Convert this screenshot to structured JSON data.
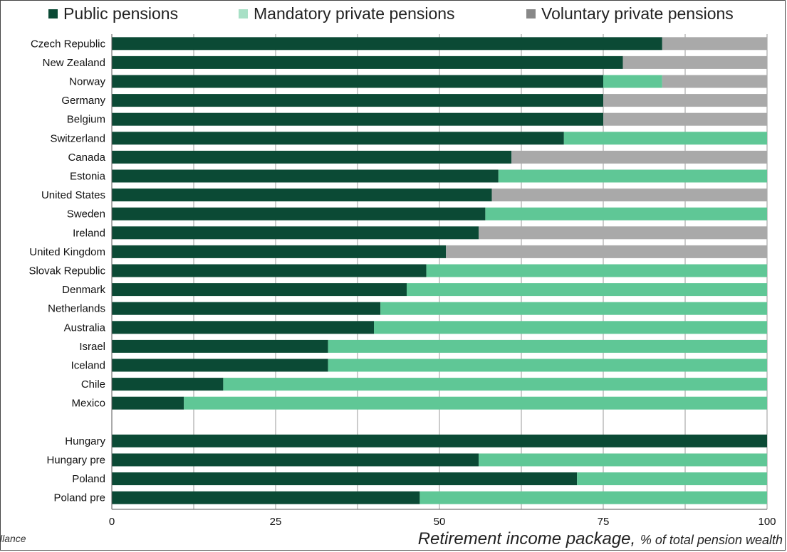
{
  "colors": {
    "public": "#0b4a35",
    "mandatory": "#5fc796",
    "voluntary": "#a9a9a9",
    "legend_mandatory": "#a8e0c6",
    "legend_voluntary": "#888888",
    "grid": "#9a9a9a"
  },
  "legend": {
    "public": "Public pensions",
    "mandatory": "Mandatory private pensions",
    "voluntary": "Voluntary private pensions"
  },
  "source_fragment": "llance",
  "chart_data": {
    "type": "bar",
    "orientation": "horizontal",
    "stacked": true,
    "categories": [
      "Czech Republic",
      "New Zealand",
      "Norway",
      "Germany",
      "Belgium",
      "Switzerland",
      "Canada",
      "Estonia",
      "United States",
      "Sweden",
      "Ireland",
      "United Kingdom",
      "Slovak Republic",
      "Denmark",
      "Netherlands",
      "Australia",
      "Israel",
      "Iceland",
      "Chile",
      "Mexico",
      "",
      "Hungary",
      "Hungary pre",
      "Poland",
      "Poland pre"
    ],
    "series": [
      {
        "name": "Public pensions",
        "values": [
          84,
          78,
          75,
          75,
          75,
          69,
          61,
          59,
          58,
          57,
          56,
          51,
          48,
          45,
          41,
          40,
          33,
          33,
          17,
          11,
          null,
          100,
          56,
          71,
          47
        ]
      },
      {
        "name": "Mandatory private pensions",
        "values": [
          0,
          0,
          9,
          0,
          0,
          31,
          0,
          41,
          0,
          43,
          0,
          0,
          52,
          55,
          59,
          60,
          67,
          67,
          83,
          89,
          null,
          0,
          44,
          29,
          53
        ]
      },
      {
        "name": "Voluntary private pensions",
        "values": [
          16,
          22,
          16,
          25,
          25,
          0,
          39,
          0,
          42,
          0,
          44,
          49,
          0,
          0,
          0,
          0,
          0,
          0,
          0,
          0,
          null,
          0,
          0,
          0,
          0
        ]
      }
    ],
    "xlim": [
      0,
      100
    ],
    "xticks": [
      0,
      25,
      50,
      75,
      100
    ],
    "xlabel_main": "Retirement income package, ",
    "xlabel_unit": "% of total pension wealth",
    "grid": true,
    "legend_position": "top"
  }
}
